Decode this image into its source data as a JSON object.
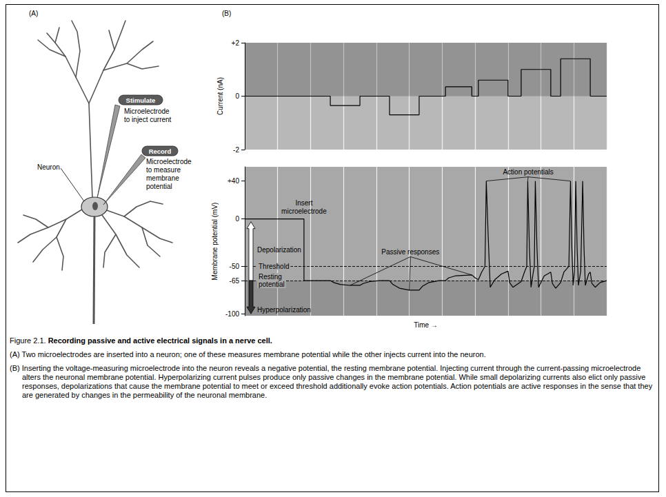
{
  "panel_labels": [
    "(A)",
    "(B)"
  ],
  "diagram": {
    "neuron_label": "Neuron",
    "stimulate": {
      "tag": "Stimulate",
      "text": [
        "Microelectrode",
        "to inject current"
      ]
    },
    "record": {
      "tag": "Record",
      "text": [
        "Microelectrode",
        "to measure",
        "membrane",
        "potential"
      ]
    }
  },
  "chart_data": [
    {
      "type": "line",
      "ylabel": "Current (nA)",
      "color": "#000000",
      "x": [
        0,
        26,
        26,
        35,
        35,
        44,
        44,
        53,
        53,
        61,
        61,
        69,
        69,
        71,
        71,
        80,
        80,
        84,
        84,
        93,
        93,
        96,
        96,
        105,
        105,
        110
      ],
      "values": [
        0,
        0,
        -0.35,
        -0.35,
        0,
        0,
        -0.7,
        -0.7,
        0,
        0,
        0.35,
        0.35,
        0,
        0,
        0.6,
        0.6,
        0,
        0,
        1.0,
        1.0,
        0,
        0,
        1.4,
        1.4,
        0,
        0
      ],
      "xlim": [
        0,
        110
      ],
      "xticks": [
        0,
        10,
        20,
        30,
        40,
        50,
        60,
        70,
        80,
        90,
        100,
        110
      ],
      "ylim": [
        -2,
        2
      ],
      "yticks": [
        {
          "value": 2,
          "label": "+2"
        },
        0,
        -2
      ],
      "grid": true,
      "tick_labels": "y"
    },
    {
      "type": "line",
      "xlabel": "Time →",
      "ylabel": "Membrane potential (mV)",
      "color": "#000000",
      "x": [
        0,
        18,
        18,
        26,
        27,
        29,
        32,
        35,
        36,
        38,
        41,
        44,
        45,
        47,
        50,
        53,
        54,
        56,
        59,
        61,
        62,
        64,
        69,
        70,
        71,
        72,
        73,
        73.4,
        74,
        74.6,
        76,
        78,
        80,
        80.5,
        81.5,
        84,
        85,
        85.7,
        86,
        86.5,
        87,
        87.6,
        88,
        88.3,
        88.8,
        89.3,
        91,
        93,
        93.5,
        94.5,
        96,
        97,
        98.5,
        99,
        99.4,
        99.8,
        100.2,
        100.6,
        101,
        101.4,
        102.1,
        102.7,
        103.1,
        103.5,
        104.5,
        105,
        105.5,
        106.5,
        108,
        110
      ],
      "values": [
        0,
        0,
        -65,
        -65,
        -67,
        -69,
        -70,
        -70,
        -68,
        -66,
        -65,
        -65,
        -69,
        -73,
        -75,
        -75,
        -71,
        -67,
        -65,
        -65,
        -62,
        -60,
        -59,
        -62,
        -64,
        -56,
        -50,
        40,
        -20,
        -72,
        -64,
        -58,
        -55,
        -67,
        -72,
        -66,
        -56,
        -50,
        40,
        -30,
        -72,
        -58,
        -50,
        40,
        -30,
        -72,
        -60,
        -56,
        -68,
        -73,
        -67,
        -56,
        -50,
        40,
        -30,
        -70,
        -55,
        40,
        -30,
        -70,
        -55,
        40,
        -30,
        -70,
        -58,
        -56,
        -68,
        -72,
        -67,
        -65
      ],
      "xlim": [
        0,
        110
      ],
      "xticks": [
        0,
        10,
        20,
        30,
        40,
        50,
        60,
        70,
        80,
        90,
        100,
        110
      ],
      "ylim": [
        -102,
        55
      ],
      "yticks": [
        {
          "value": 40,
          "label": "+40"
        },
        0,
        -50,
        -65,
        -100
      ],
      "grid": true,
      "tick_labels": "y",
      "reference_lines": [
        {
          "label": "Threshold",
          "value": -50
        },
        {
          "label": "Resting potential",
          "value": -65
        }
      ],
      "annotations": {
        "insert": "Insert microelectrode",
        "passive": "Passive responses",
        "action": "Action potentials",
        "depolarization": "Depolarization",
        "hyperpolarization": "Hyperpolarization"
      }
    }
  ],
  "caption": {
    "figure": "Figure 2.1.",
    "title": "Recording passive and active electrical signals in a nerve cell.",
    "items": [
      {
        "label": "(A)",
        "text": "Two microelectrodes are inserted into a neuron; one of these measures membrane potential while the other injects current into the neuron."
      },
      {
        "label": "(B)",
        "text": "Inserting the voltage-measuring microelectrode into the neuron reveals a negative potential, the resting membrane potential. Injecting current through the current-passing microelectrode alters the neuronal membrane potential. Hyperpolarizing current pulses produce only passive changes in the membrane potential. While small depolarizing currents also elict only passive responses, depolarizations that cause the membrane potential to meet or exceed threshold additionally evoke action potentials. Action potentials are active responses in the sense that they are generated by changes in the permeability of the neuronal membrane."
      }
    ]
  }
}
